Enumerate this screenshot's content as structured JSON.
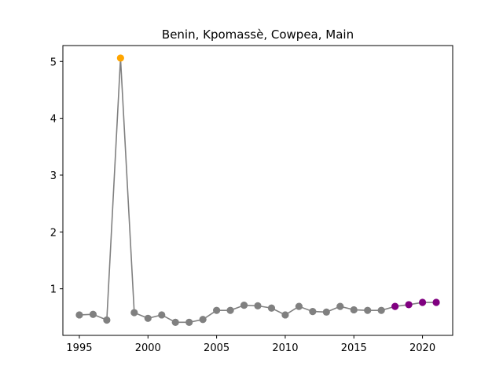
{
  "chart_data": {
    "type": "line",
    "title": "Benin, Kpomassè, Cowpea, Main",
    "xlabel": "",
    "ylabel": "",
    "xlim": [
      1993.8,
      2022.2
    ],
    "ylim": [
      0.18,
      5.28
    ],
    "x_ticks": [
      1995,
      2000,
      2005,
      2010,
      2015,
      2020
    ],
    "y_ticks": [
      1,
      2,
      3,
      4,
      5
    ],
    "grid": false,
    "line_color": "#808080",
    "point_colors": {
      "default": "#808080",
      "highlight": "#ffa500",
      "recent": "#800080"
    },
    "series": [
      {
        "x": [
          1995,
          1996,
          1997,
          1998,
          1999,
          2000,
          2001,
          2002,
          2003,
          2004,
          2005,
          2006,
          2007,
          2008,
          2009,
          2010,
          2011,
          2012,
          2013,
          2014,
          2015,
          2016,
          2017,
          2018,
          2019,
          2020,
          2021
        ],
        "y": [
          0.54,
          0.55,
          0.45,
          5.06,
          0.58,
          0.48,
          0.54,
          0.41,
          0.41,
          0.46,
          0.62,
          0.62,
          0.71,
          0.7,
          0.66,
          0.54,
          0.69,
          0.6,
          0.59,
          0.69,
          0.63,
          0.62,
          0.62,
          0.69,
          0.72,
          0.76,
          0.76
        ],
        "point_class": [
          "default",
          "default",
          "default",
          "highlight",
          "default",
          "default",
          "default",
          "default",
          "default",
          "default",
          "default",
          "default",
          "default",
          "default",
          "default",
          "default",
          "default",
          "default",
          "default",
          "default",
          "default",
          "default",
          "default",
          "recent",
          "recent",
          "recent",
          "recent"
        ]
      }
    ]
  }
}
